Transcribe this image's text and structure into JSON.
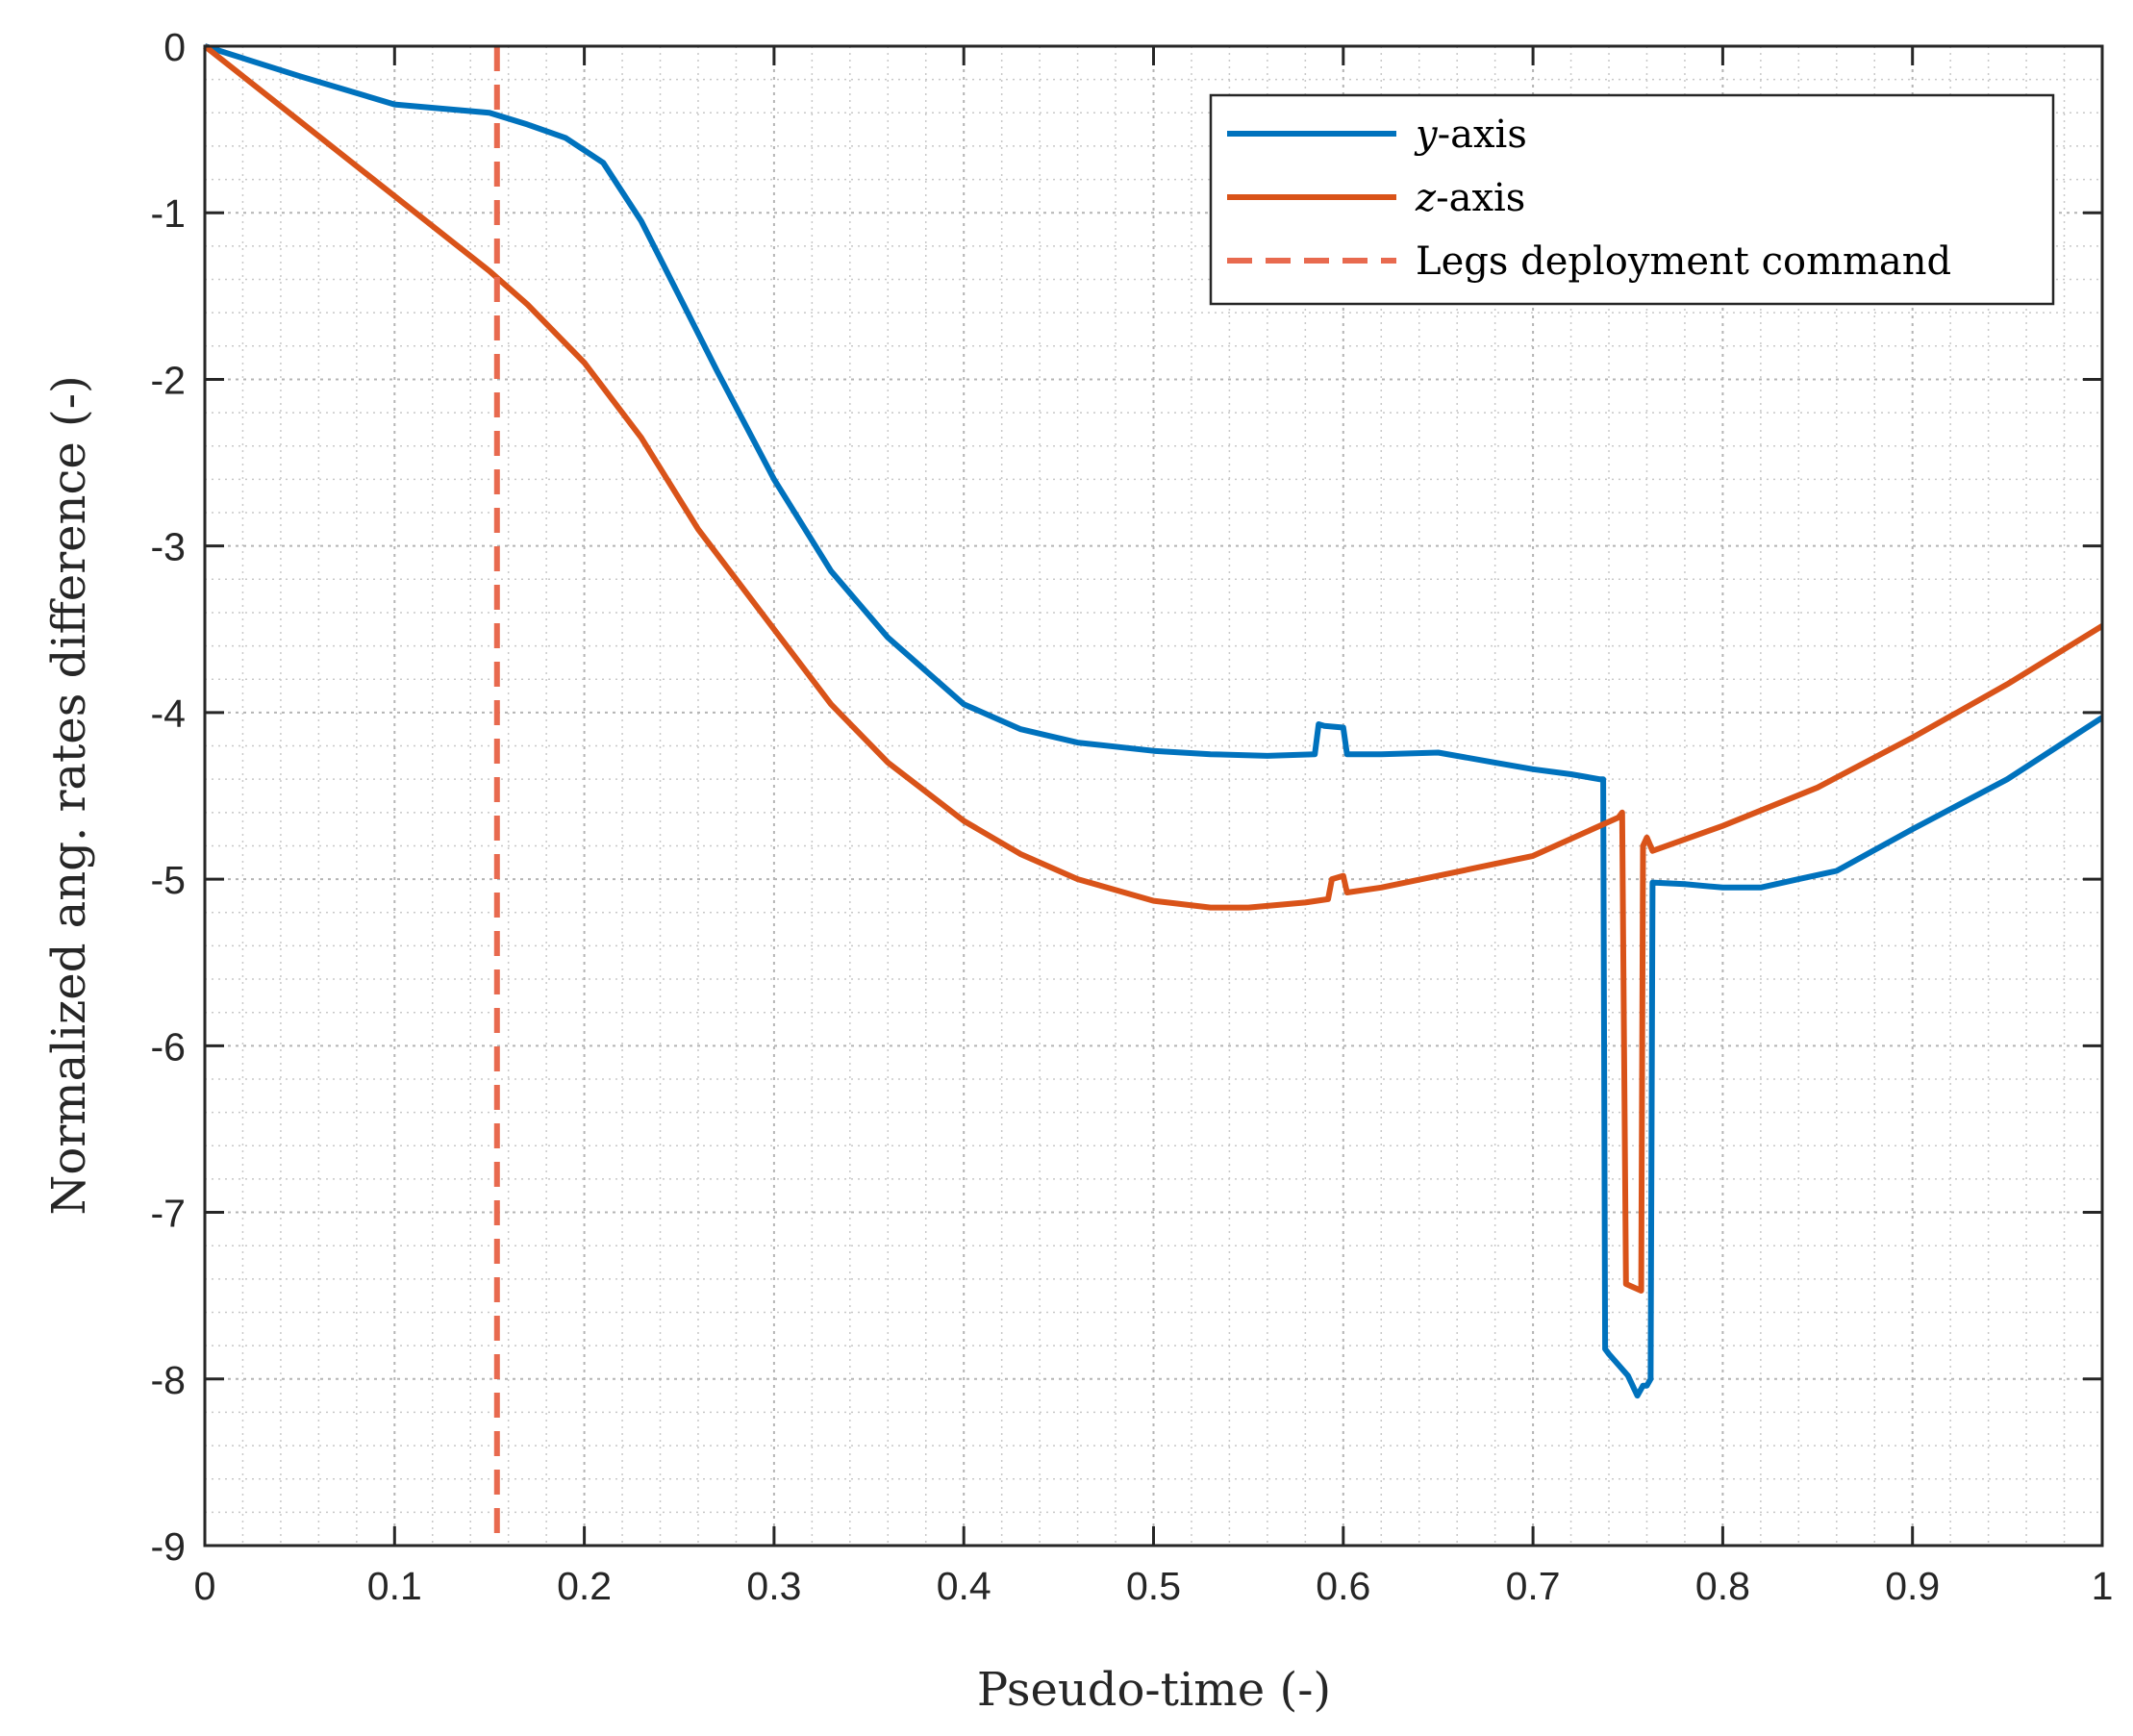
{
  "chart_data": {
    "type": "line",
    "xlabel": "Pseudo-time (-)",
    "ylabel": "Normalized ang. rates difference (-)",
    "xlim": [
      0,
      1
    ],
    "ylim": [
      -9,
      0
    ],
    "xticks": [
      0,
      0.1,
      0.2,
      0.3,
      0.4,
      0.5,
      0.6,
      0.7,
      0.8,
      0.9,
      1
    ],
    "xtick_labels": [
      "0",
      "0.1",
      "0.2",
      "0.3",
      "0.4",
      "0.5",
      "0.6",
      "0.7",
      "0.8",
      "0.9",
      "1"
    ],
    "yticks": [
      0,
      -1,
      -2,
      -3,
      -4,
      -5,
      -6,
      -7,
      -8,
      -9
    ],
    "ytick_labels": [
      "0",
      "-1",
      "-2",
      "-3",
      "-4",
      "-5",
      "-6",
      "-7",
      "-8",
      "-9"
    ],
    "grid": true,
    "minor_grid": true,
    "legend_position": "top-right",
    "series": [
      {
        "name": "y-axis",
        "legend_italic_part": "y",
        "legend_rest": "-axis",
        "color": "#0072BD",
        "style": "solid",
        "x": [
          0,
          0.05,
          0.1,
          0.15,
          0.17,
          0.19,
          0.21,
          0.23,
          0.25,
          0.27,
          0.3,
          0.33,
          0.36,
          0.4,
          0.43,
          0.46,
          0.5,
          0.53,
          0.56,
          0.585,
          0.587,
          0.59,
          0.6,
          0.602,
          0.605,
          0.62,
          0.65,
          0.68,
          0.7,
          0.72,
          0.735,
          0.737,
          0.738,
          0.74,
          0.75,
          0.755,
          0.758,
          0.76,
          0.762,
          0.763,
          0.78,
          0.8,
          0.82,
          0.84,
          0.86,
          0.9,
          0.95,
          1
        ],
        "y": [
          0,
          -0.18,
          -0.35,
          -0.4,
          -0.47,
          -0.55,
          -0.7,
          -1.05,
          -1.5,
          -1.95,
          -2.6,
          -3.15,
          -3.55,
          -3.95,
          -4.1,
          -4.18,
          -4.23,
          -4.25,
          -4.26,
          -4.25,
          -4.07,
          -4.08,
          -4.09,
          -4.25,
          -4.25,
          -4.25,
          -4.24,
          -4.3,
          -4.34,
          -4.37,
          -4.4,
          -4.4,
          -7.82,
          -7.85,
          -7.98,
          -8.1,
          -8.04,
          -8.04,
          -8.0,
          -5.02,
          -5.03,
          -5.05,
          -5.05,
          -5.0,
          -4.95,
          -4.7,
          -4.4,
          -4.03
        ]
      },
      {
        "name": "z-axis",
        "legend_italic_part": "z",
        "legend_rest": "-axis",
        "color": "#D95319",
        "style": "solid",
        "x": [
          0,
          0.05,
          0.1,
          0.15,
          0.17,
          0.2,
          0.23,
          0.26,
          0.3,
          0.33,
          0.36,
          0.4,
          0.43,
          0.46,
          0.5,
          0.53,
          0.55,
          0.58,
          0.592,
          0.594,
          0.6,
          0.602,
          0.62,
          0.65,
          0.7,
          0.745,
          0.747,
          0.749,
          0.757,
          0.758,
          0.76,
          0.763,
          0.8,
          0.85,
          0.9,
          0.95,
          1
        ],
        "y": [
          0,
          -0.45,
          -0.9,
          -1.35,
          -1.55,
          -1.9,
          -2.35,
          -2.9,
          -3.5,
          -3.95,
          -4.3,
          -4.65,
          -4.85,
          -5.0,
          -5.13,
          -5.17,
          -5.17,
          -5.14,
          -5.12,
          -5.0,
          -4.98,
          -5.08,
          -5.05,
          -4.98,
          -4.86,
          -4.63,
          -4.6,
          -7.43,
          -7.47,
          -4.8,
          -4.75,
          -4.83,
          -4.68,
          -4.45,
          -4.15,
          -3.83,
          -3.48
        ]
      },
      {
        "name": "Legs deployment command",
        "color": "#E86A4F",
        "style": "dashed",
        "x": [
          0.154,
          0.154
        ],
        "y": [
          0,
          -9
        ]
      }
    ]
  }
}
